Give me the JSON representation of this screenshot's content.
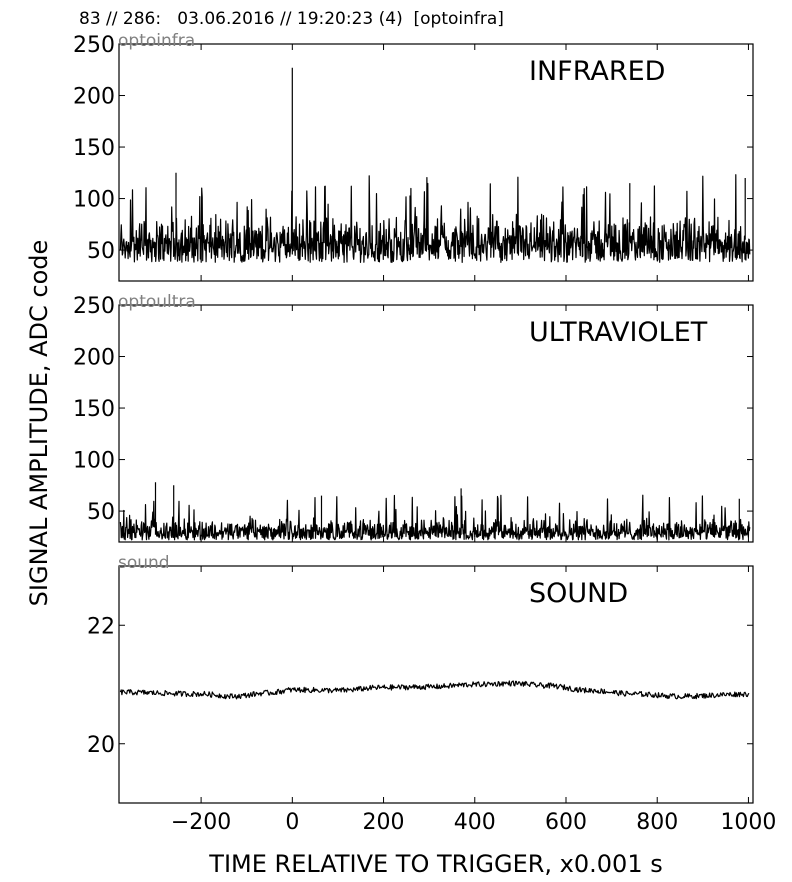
{
  "header": "83 // 286:   03.06.2016 // 19:20:23 (4)  [optoinfra]",
  "colors": {
    "trace": "#000000",
    "source_label": "#808080",
    "background": "#ffffff"
  },
  "chart_data": {
    "type": "line",
    "xlabel": "TIME RELATIVE TO TRIGGER,   x0.001 s",
    "ylabel": "SIGNAL AMPLITUDE,  ADC code",
    "xlim": [
      -380,
      1010
    ],
    "xticks": [
      -200,
      0,
      200,
      400,
      600,
      800,
      1000
    ],
    "xticklabels": [
      "−200",
      "0",
      "200",
      "400",
      "600",
      "800",
      "1000"
    ],
    "grid": false,
    "panels": [
      {
        "title": "INFRARED",
        "source": "optoinfra",
        "ylim": [
          20,
          250
        ],
        "yticks": [
          50,
          100,
          150,
          200,
          250
        ],
        "noise": {
          "baseline": 60,
          "band": [
            38,
            88
          ],
          "spikes_to": 125,
          "min": 27
        },
        "spikes": [
          {
            "x": 0,
            "y": 227
          },
          {
            "x": -255,
            "y": 125
          },
          {
            "x": 258,
            "y": 103
          },
          {
            "x": 740,
            "y": 115
          },
          {
            "x": 993,
            "y": 120
          }
        ]
      },
      {
        "title": "ULTRAVIOLET",
        "source": "optoultra",
        "ylim": [
          20,
          250
        ],
        "yticks": [
          50,
          100,
          150,
          200,
          250
        ],
        "noise": {
          "baseline": 27,
          "band": [
            22,
            45
          ],
          "spikes_to": 66,
          "min": 22
        },
        "spikes": [
          {
            "x": -300,
            "y": 78
          },
          {
            "x": -260,
            "y": 75
          },
          {
            "x": 64,
            "y": 65
          },
          {
            "x": 370,
            "y": 72
          },
          {
            "x": 980,
            "y": 62
          }
        ]
      },
      {
        "title": "SOUND",
        "source": "sound",
        "ylim": [
          19,
          23
        ],
        "yticks": [
          20,
          22
        ],
        "curve_x": [
          -380,
          -200,
          -130,
          -50,
          0,
          100,
          200,
          300,
          400,
          480,
          560,
          650,
          750,
          850,
          1000
        ],
        "curve_y": [
          20.87,
          20.84,
          20.8,
          20.86,
          20.91,
          20.9,
          20.95,
          20.96,
          21.0,
          21.02,
          20.98,
          20.9,
          20.84,
          20.8,
          20.84
        ]
      }
    ]
  }
}
